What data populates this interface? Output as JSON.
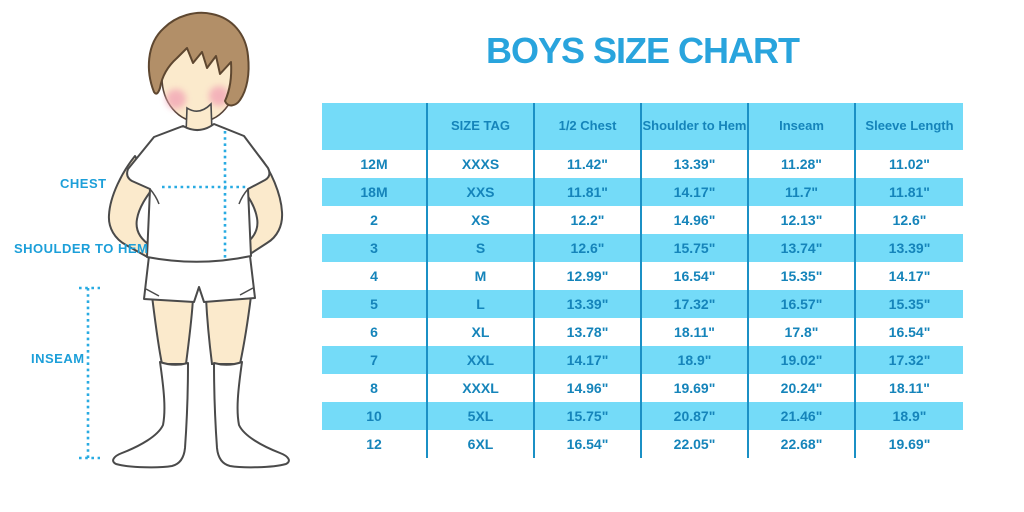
{
  "title": "BOYS SIZE CHART",
  "colors": {
    "title_blue": "#29A4DD",
    "label_blue": "#1C9FD9",
    "text_blue": "#1584BA",
    "cell_cyan": "#74DBF8",
    "line_blue": "#1B90C5",
    "dotted_cyan": "#29ABE2",
    "skin": "#FBEACC",
    "hair_fill": "#B28F68",
    "hair_stroke": "#5E4730",
    "outline": "#4A4A4A",
    "cheek_pink": "#F2A6B6"
  },
  "diagram": {
    "chest_label": "CHEST",
    "shoulder_to_hem_label": "SHOULDER TO HEM",
    "inseam_label": "INSEAM"
  },
  "chart_data": {
    "type": "table",
    "title": "BOYS SIZE CHART",
    "columns": [
      "",
      "SIZE TAG",
      "1/2 Chest",
      "Shoulder to Hem",
      "Inseam",
      "Sleeve Length"
    ],
    "rows": [
      [
        "12M",
        "XXXS",
        "11.42\"",
        "13.39\"",
        "11.28\"",
        "11.02\""
      ],
      [
        "18M",
        "XXS",
        "11.81\"",
        "14.17\"",
        "11.7\"",
        "11.81\""
      ],
      [
        "2",
        "XS",
        "12.2\"",
        "14.96\"",
        "12.13\"",
        "12.6\""
      ],
      [
        "3",
        "S",
        "12.6\"",
        "15.75\"",
        "13.74\"",
        "13.39\""
      ],
      [
        "4",
        "M",
        "12.99\"",
        "16.54\"",
        "15.35\"",
        "14.17\""
      ],
      [
        "5",
        "L",
        "13.39\"",
        "17.32\"",
        "16.57\"",
        "15.35\""
      ],
      [
        "6",
        "XL",
        "13.78\"",
        "18.11\"",
        "17.8\"",
        "16.54\""
      ],
      [
        "7",
        "XXL",
        "14.17\"",
        "18.9\"",
        "19.02\"",
        "17.32\""
      ],
      [
        "8",
        "XXXL",
        "14.96\"",
        "19.69\"",
        "20.24\"",
        "18.11\""
      ],
      [
        "10",
        "5XL",
        "15.75\"",
        "20.87\"",
        "21.46\"",
        "18.9\""
      ],
      [
        "12",
        "6XL",
        "16.54\"",
        "22.05\"",
        "22.68\"",
        "19.69\""
      ]
    ]
  }
}
